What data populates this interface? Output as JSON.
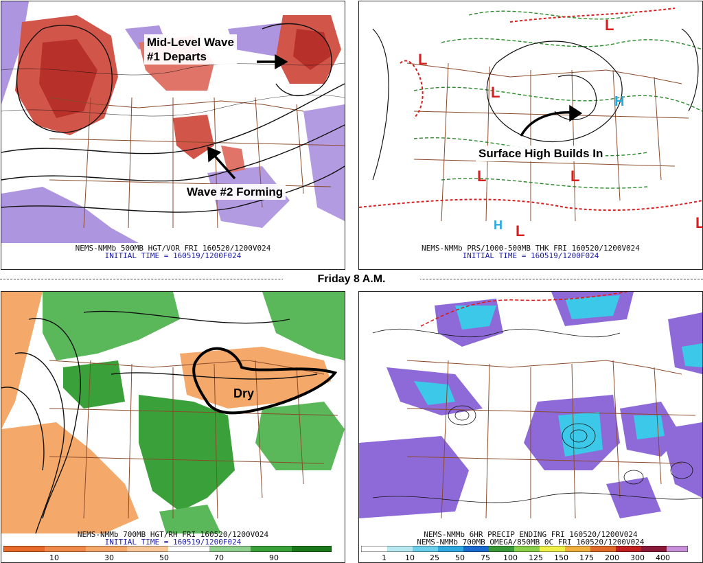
{
  "friday_label": "Friday 8 A.M.",
  "panels": {
    "upper_left": {
      "caption_line1": "NEMS-NMMb 500MB HGT/VOR FRI 160520/1200V024",
      "caption_line2": "INITIAL TIME = 160519/1200F024",
      "callout_1": "Mid-Level Wave\n#1 Departs",
      "callout_2": "Wave #2 Forming"
    },
    "upper_right": {
      "caption_line1": "NEMS-NMMb PRS/1000-500MB THK FRI 160520/1200V024",
      "caption_line2": "INITIAL TIME = 160519/1200F024",
      "callout": "Surface High Builds In"
    },
    "lower_left": {
      "caption_line1": "NEMS-NMMb 700MB HGT/RH FRI 160520/1200V024",
      "caption_line2": "INITIAL TIME = 160519/1200F024",
      "callout": "Dry",
      "colorbar_ticks": [
        "10",
        "30",
        "50",
        "70",
        "90"
      ]
    },
    "lower_right": {
      "caption_line1": "NEMS-NMMb 6HR PRECIP ENDING FRI 160520/1200V024",
      "caption_line2": "NEMS-NMMb 700MB OMEGA/850MB 0C FRI 160520/1200V024",
      "colorbar_ticks": [
        "1",
        "10",
        "25",
        "50",
        "75",
        "100",
        "125",
        "150",
        "175",
        "200",
        "300",
        "400"
      ]
    }
  },
  "colors": {
    "vorticity_red": "#c8443a",
    "vorticity_purple": "#8a6ad0",
    "rh_green": "#3aa83a",
    "rh_orange": "#f0a060",
    "precip_purple": "#8d6ad8",
    "precip_cyan": "#3cc8e8",
    "thickness_green": "#2a8a2a",
    "thickness_red": "#d62020"
  }
}
